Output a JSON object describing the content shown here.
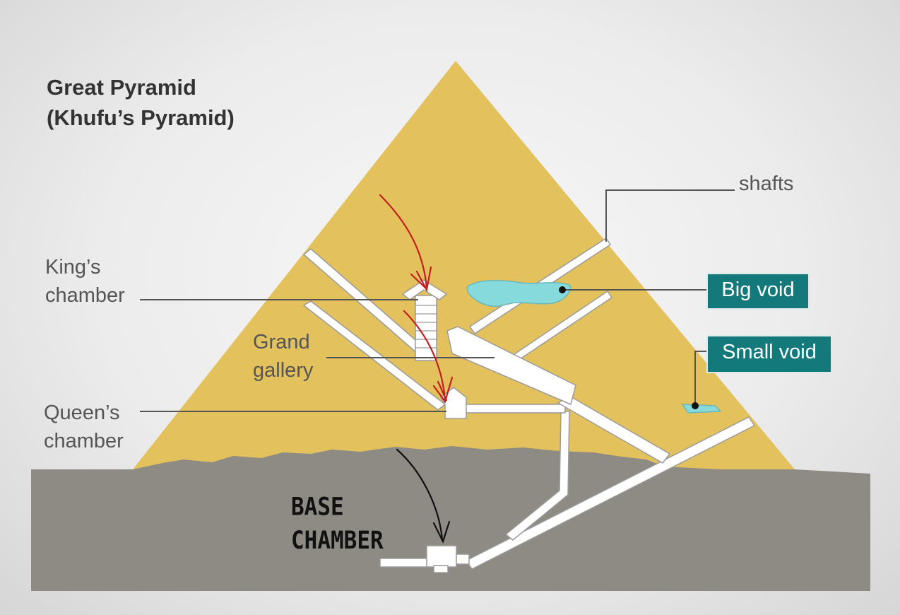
{
  "title": [
    "Great Pyramid",
    "(Khufu’s Pyramid)"
  ],
  "labels": {
    "shafts": "shafts",
    "kings_chamber": [
      "King’s",
      "chamber"
    ],
    "grand_gallery": [
      "Grand",
      "gallery"
    ],
    "queens_chamber": [
      "Queen’s",
      "chamber"
    ],
    "big_void": "Big void",
    "small_void": "Small void"
  },
  "annotation": [
    "BASE",
    "CHAMBER"
  ],
  "colors": {
    "pyramid": "#e3c25e",
    "ground": "#8e8b85",
    "void": "#86dadb",
    "void_box": "#14797b",
    "annotation_arrow": "#111111",
    "red_arrows": "#c41f1f"
  }
}
